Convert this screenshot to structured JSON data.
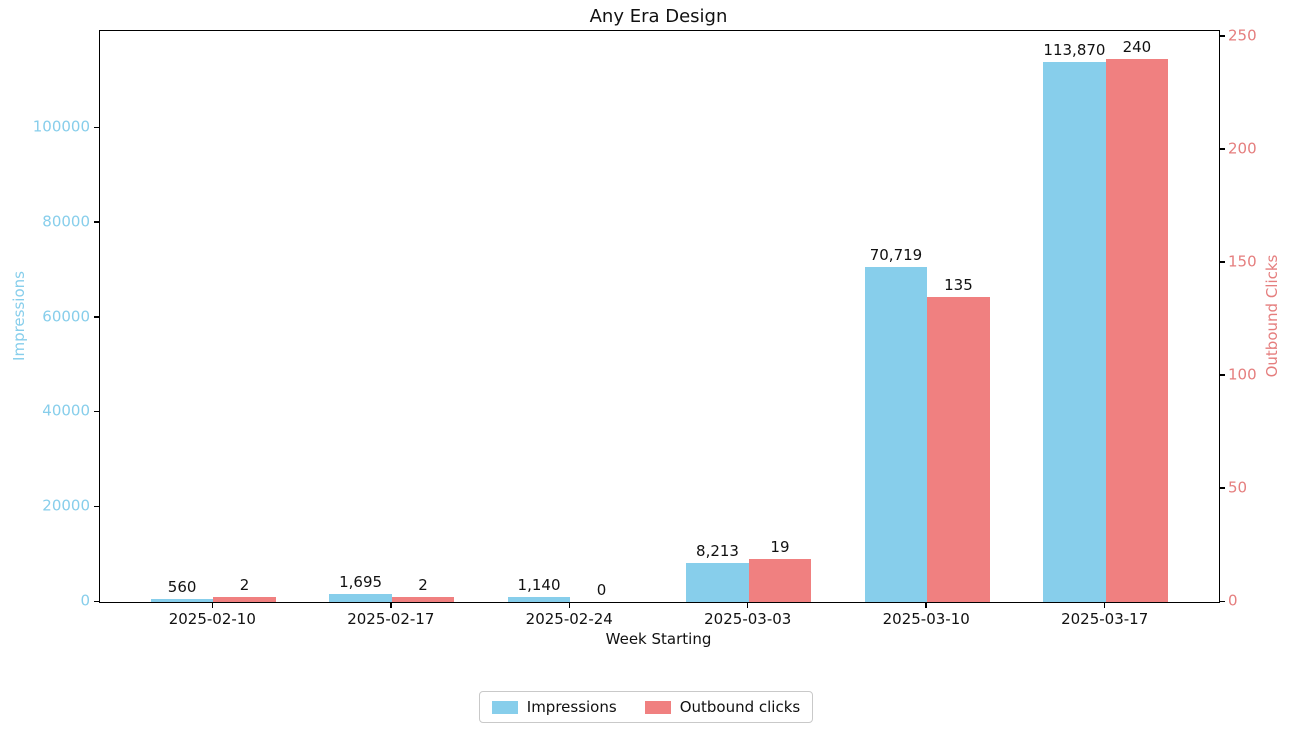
{
  "chart_data": {
    "type": "bar",
    "title": "Any Era Design",
    "xlabel": "Week Starting",
    "grid": false,
    "legend_position": "bottom-center",
    "categories": [
      "2025-02-10",
      "2025-02-17",
      "2025-02-24",
      "2025-03-03",
      "2025-03-10",
      "2025-03-17"
    ],
    "series": [
      {
        "name": "Impressions",
        "axis": "left",
        "color": "#87CEEB",
        "values": [
          560,
          1695,
          1140,
          8213,
          70719,
          113870
        ],
        "value_labels": [
          "560",
          "1,695",
          "1,140",
          "8,213",
          "70,719",
          "113,870"
        ]
      },
      {
        "name": "Outbound clicks",
        "axis": "right",
        "color": "#F08080",
        "values": [
          2,
          2,
          0,
          19,
          135,
          240
        ],
        "value_labels": [
          "2",
          "2",
          "0",
          "19",
          "135",
          "240"
        ]
      }
    ],
    "left_axis": {
      "label": "Impressions",
      "color": "#87CEEB",
      "ticks": [
        0,
        20000,
        40000,
        60000,
        80000,
        100000
      ],
      "tick_labels": [
        "0",
        "20000",
        "40000",
        "60000",
        "80000",
        "100000"
      ],
      "range": [
        0,
        120500
      ]
    },
    "right_axis": {
      "label": "Outbound Clicks",
      "color": "#E57E7E",
      "ticks": [
        0,
        50,
        100,
        150,
        200,
        250
      ],
      "tick_labels": [
        "0",
        "50",
        "100",
        "150",
        "200",
        "250"
      ],
      "range": [
        0,
        252.5
      ]
    },
    "legend": {
      "entries": [
        {
          "label": "Impressions",
          "color": "#87CEEB"
        },
        {
          "label": "Outbound clicks",
          "color": "#F08080"
        }
      ]
    }
  }
}
